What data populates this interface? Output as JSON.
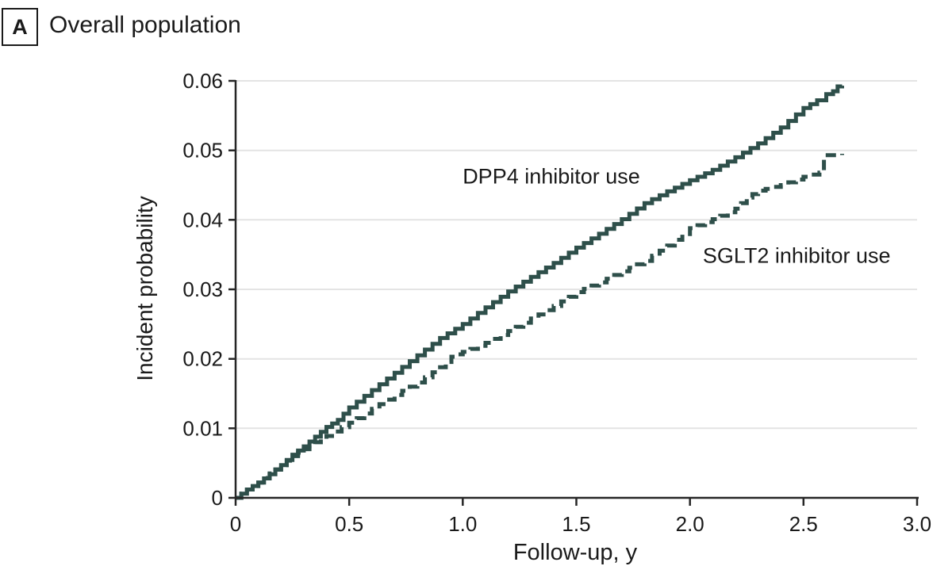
{
  "panel": {
    "letter": "A",
    "title": "Overall population"
  },
  "chart_data": {
    "type": "line",
    "title": "Overall population",
    "xlabel": "Follow-up, y",
    "ylabel": "Incident probability",
    "xlim": [
      0,
      3.0
    ],
    "ylim": [
      0,
      0.06
    ],
    "grid": "horizontal-light-gray",
    "legend_position": "inline-labels",
    "x_tick_values": [
      0,
      0.5,
      1.0,
      1.5,
      2.0,
      2.5,
      3.0
    ],
    "x_tick_labels": [
      "0",
      "0.5",
      "1.0",
      "1.5",
      "2.0",
      "2.5",
      "3.0"
    ],
    "y_tick_values": [
      0,
      0.01,
      0.02,
      0.03,
      0.04,
      0.05,
      0.06
    ],
    "y_tick_labels": [
      "0",
      "0.01",
      "0.02",
      "0.03",
      "0.04",
      "0.05",
      "0.06"
    ],
    "colors": {
      "line": "#2e4f4a",
      "grid": "#e4e4e4",
      "axis": "#262626",
      "text": "#1a1a1a"
    },
    "series": [
      {
        "name": "DPP4 inhibitor use",
        "style": "solid",
        "points": [
          [
            0,
            0
          ],
          [
            0.05,
            0.0012
          ],
          [
            0.1,
            0.0022
          ],
          [
            0.15,
            0.0034
          ],
          [
            0.2,
            0.0047
          ],
          [
            0.25,
            0.0062
          ],
          [
            0.3,
            0.0074
          ],
          [
            0.35,
            0.0088
          ],
          [
            0.4,
            0.0102
          ],
          [
            0.45,
            0.0112
          ],
          [
            0.5,
            0.013
          ],
          [
            0.6,
            0.0155
          ],
          [
            0.7,
            0.018
          ],
          [
            0.8,
            0.0205
          ],
          [
            0.9,
            0.023
          ],
          [
            1.0,
            0.025
          ],
          [
            1.1,
            0.0274
          ],
          [
            1.2,
            0.0297
          ],
          [
            1.3,
            0.0318
          ],
          [
            1.4,
            0.0338
          ],
          [
            1.5,
            0.036
          ],
          [
            1.6,
            0.038
          ],
          [
            1.7,
            0.0401
          ],
          [
            1.8,
            0.0424
          ],
          [
            1.9,
            0.0441
          ],
          [
            2.0,
            0.0457
          ],
          [
            2.1,
            0.0472
          ],
          [
            2.2,
            0.049
          ],
          [
            2.3,
            0.051
          ],
          [
            2.4,
            0.0533
          ],
          [
            2.5,
            0.0561
          ],
          [
            2.56,
            0.0572
          ],
          [
            2.6,
            0.0581
          ],
          [
            2.63,
            0.0585
          ],
          [
            2.65,
            0.0592
          ],
          [
            2.67,
            0.0593
          ]
        ]
      },
      {
        "name": "SGLT2 inhibitor use",
        "style": "dashed",
        "points": [
          [
            0,
            0
          ],
          [
            0.05,
            0.0012
          ],
          [
            0.1,
            0.0022
          ],
          [
            0.15,
            0.0035
          ],
          [
            0.2,
            0.0047
          ],
          [
            0.25,
            0.006
          ],
          [
            0.3,
            0.007
          ],
          [
            0.35,
            0.008
          ],
          [
            0.4,
            0.0089
          ],
          [
            0.5,
            0.0108
          ],
          [
            0.6,
            0.0128
          ],
          [
            0.7,
            0.0148
          ],
          [
            0.8,
            0.0166
          ],
          [
            0.9,
            0.0188
          ],
          [
            0.95,
            0.0203
          ],
          [
            1.0,
            0.021
          ],
          [
            1.1,
            0.0223
          ],
          [
            1.2,
            0.024
          ],
          [
            1.3,
            0.0258
          ],
          [
            1.4,
            0.0276
          ],
          [
            1.5,
            0.0296
          ],
          [
            1.6,
            0.031
          ],
          [
            1.7,
            0.0326
          ],
          [
            1.8,
            0.0341
          ],
          [
            1.9,
            0.0363
          ],
          [
            2.0,
            0.0388
          ],
          [
            2.1,
            0.0401
          ],
          [
            2.2,
            0.0416
          ],
          [
            2.25,
            0.0432
          ],
          [
            2.3,
            0.0442
          ],
          [
            2.4,
            0.045
          ],
          [
            2.5,
            0.0462
          ],
          [
            2.57,
            0.0468
          ],
          [
            2.59,
            0.0493
          ],
          [
            2.64,
            0.0493
          ],
          [
            2.67,
            0.0495
          ]
        ]
      }
    ],
    "annotations": [
      {
        "text": "DPP4 inhibitor use",
        "x": 1.39,
        "y": 0.0452
      },
      {
        "text": "SGLT2 inhibitor use",
        "x": 2.47,
        "y": 0.0338
      }
    ]
  }
}
